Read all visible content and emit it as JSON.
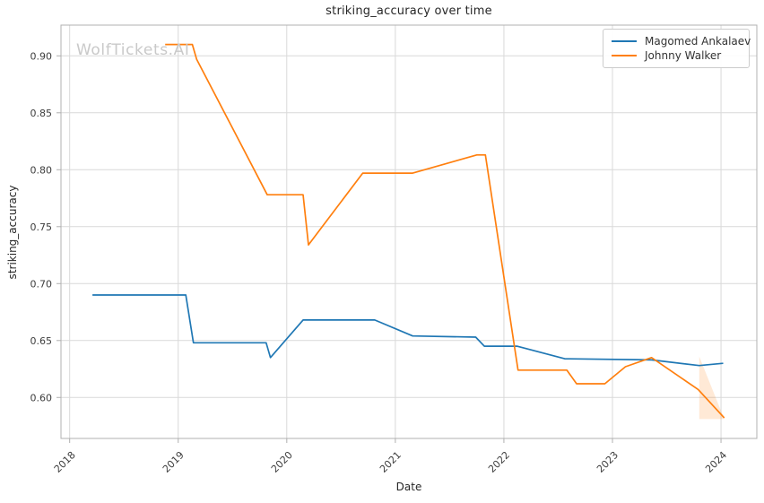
{
  "figure": {
    "title": "striking_accuracy over time",
    "watermark": "WolfTickets.AI",
    "xlabel": "Date",
    "ylabel": "striking_accuracy"
  },
  "legend": {
    "position": "upper-right",
    "items": [
      {
        "label": "Magomed Ankalaev",
        "color": "#1f77b4"
      },
      {
        "label": "Johnny Walker",
        "color": "#ff7f0e"
      }
    ]
  },
  "chart_data": {
    "type": "line",
    "title": "striking_accuracy over time",
    "xlabel": "Date",
    "ylabel": "striking_accuracy",
    "xlim": [
      2017.92,
      2024.33
    ],
    "ylim": [
      0.564,
      0.927
    ],
    "x_ticks": [
      2018,
      2019,
      2020,
      2021,
      2022,
      2023,
      2024
    ],
    "y_ticks": [
      0.6,
      0.65,
      0.7,
      0.75,
      0.8,
      0.85,
      0.9
    ],
    "grid": true,
    "legend_position": "upper-right",
    "series": [
      {
        "name": "Magomed Ankalaev",
        "color": "#1f77b4",
        "points": [
          [
            2018.21,
            0.69
          ],
          [
            2019.07,
            0.69
          ],
          [
            2019.14,
            0.648
          ],
          [
            2019.81,
            0.648
          ],
          [
            2019.85,
            0.635
          ],
          [
            2020.15,
            0.668
          ],
          [
            2020.81,
            0.668
          ],
          [
            2021.16,
            0.654
          ],
          [
            2021.74,
            0.653
          ],
          [
            2021.82,
            0.645
          ],
          [
            2022.12,
            0.645
          ],
          [
            2022.56,
            0.634
          ],
          [
            2023.36,
            0.633
          ],
          [
            2023.8,
            0.628
          ],
          [
            2024.02,
            0.63
          ]
        ]
      },
      {
        "name": "Johnny Walker",
        "color": "#ff7f0e",
        "points": [
          [
            2018.88,
            0.91
          ],
          [
            2019.13,
            0.91
          ],
          [
            2019.17,
            0.897
          ],
          [
            2019.82,
            0.778
          ],
          [
            2020.15,
            0.778
          ],
          [
            2020.2,
            0.734
          ],
          [
            2020.7,
            0.797
          ],
          [
            2021.16,
            0.797
          ],
          [
            2021.75,
            0.813
          ],
          [
            2021.83,
            0.813
          ],
          [
            2022.13,
            0.624
          ],
          [
            2022.58,
            0.624
          ],
          [
            2022.67,
            0.612
          ],
          [
            2022.93,
            0.612
          ],
          [
            2023.12,
            0.627
          ],
          [
            2023.36,
            0.635
          ],
          [
            2023.79,
            0.607
          ],
          [
            2024.03,
            0.582
          ]
        ]
      }
    ],
    "uncertainty_band": {
      "series": "Johnny Walker",
      "color": "#ff7f0e",
      "opacity": 0.17,
      "vertices": [
        [
          2023.8,
          0.636
        ],
        [
          2023.8,
          0.581
        ],
        [
          2024.03,
          0.581
        ]
      ]
    }
  },
  "style": {
    "grid_color": "#d9d9d9",
    "spine_color": "#b0b0b0",
    "tick_color": "#b0b0b0",
    "tick_label_color": "#3d3d3d",
    "title_color": "#262626",
    "watermark_color": "#c9c9c9",
    "background_color": "#ffffff"
  }
}
